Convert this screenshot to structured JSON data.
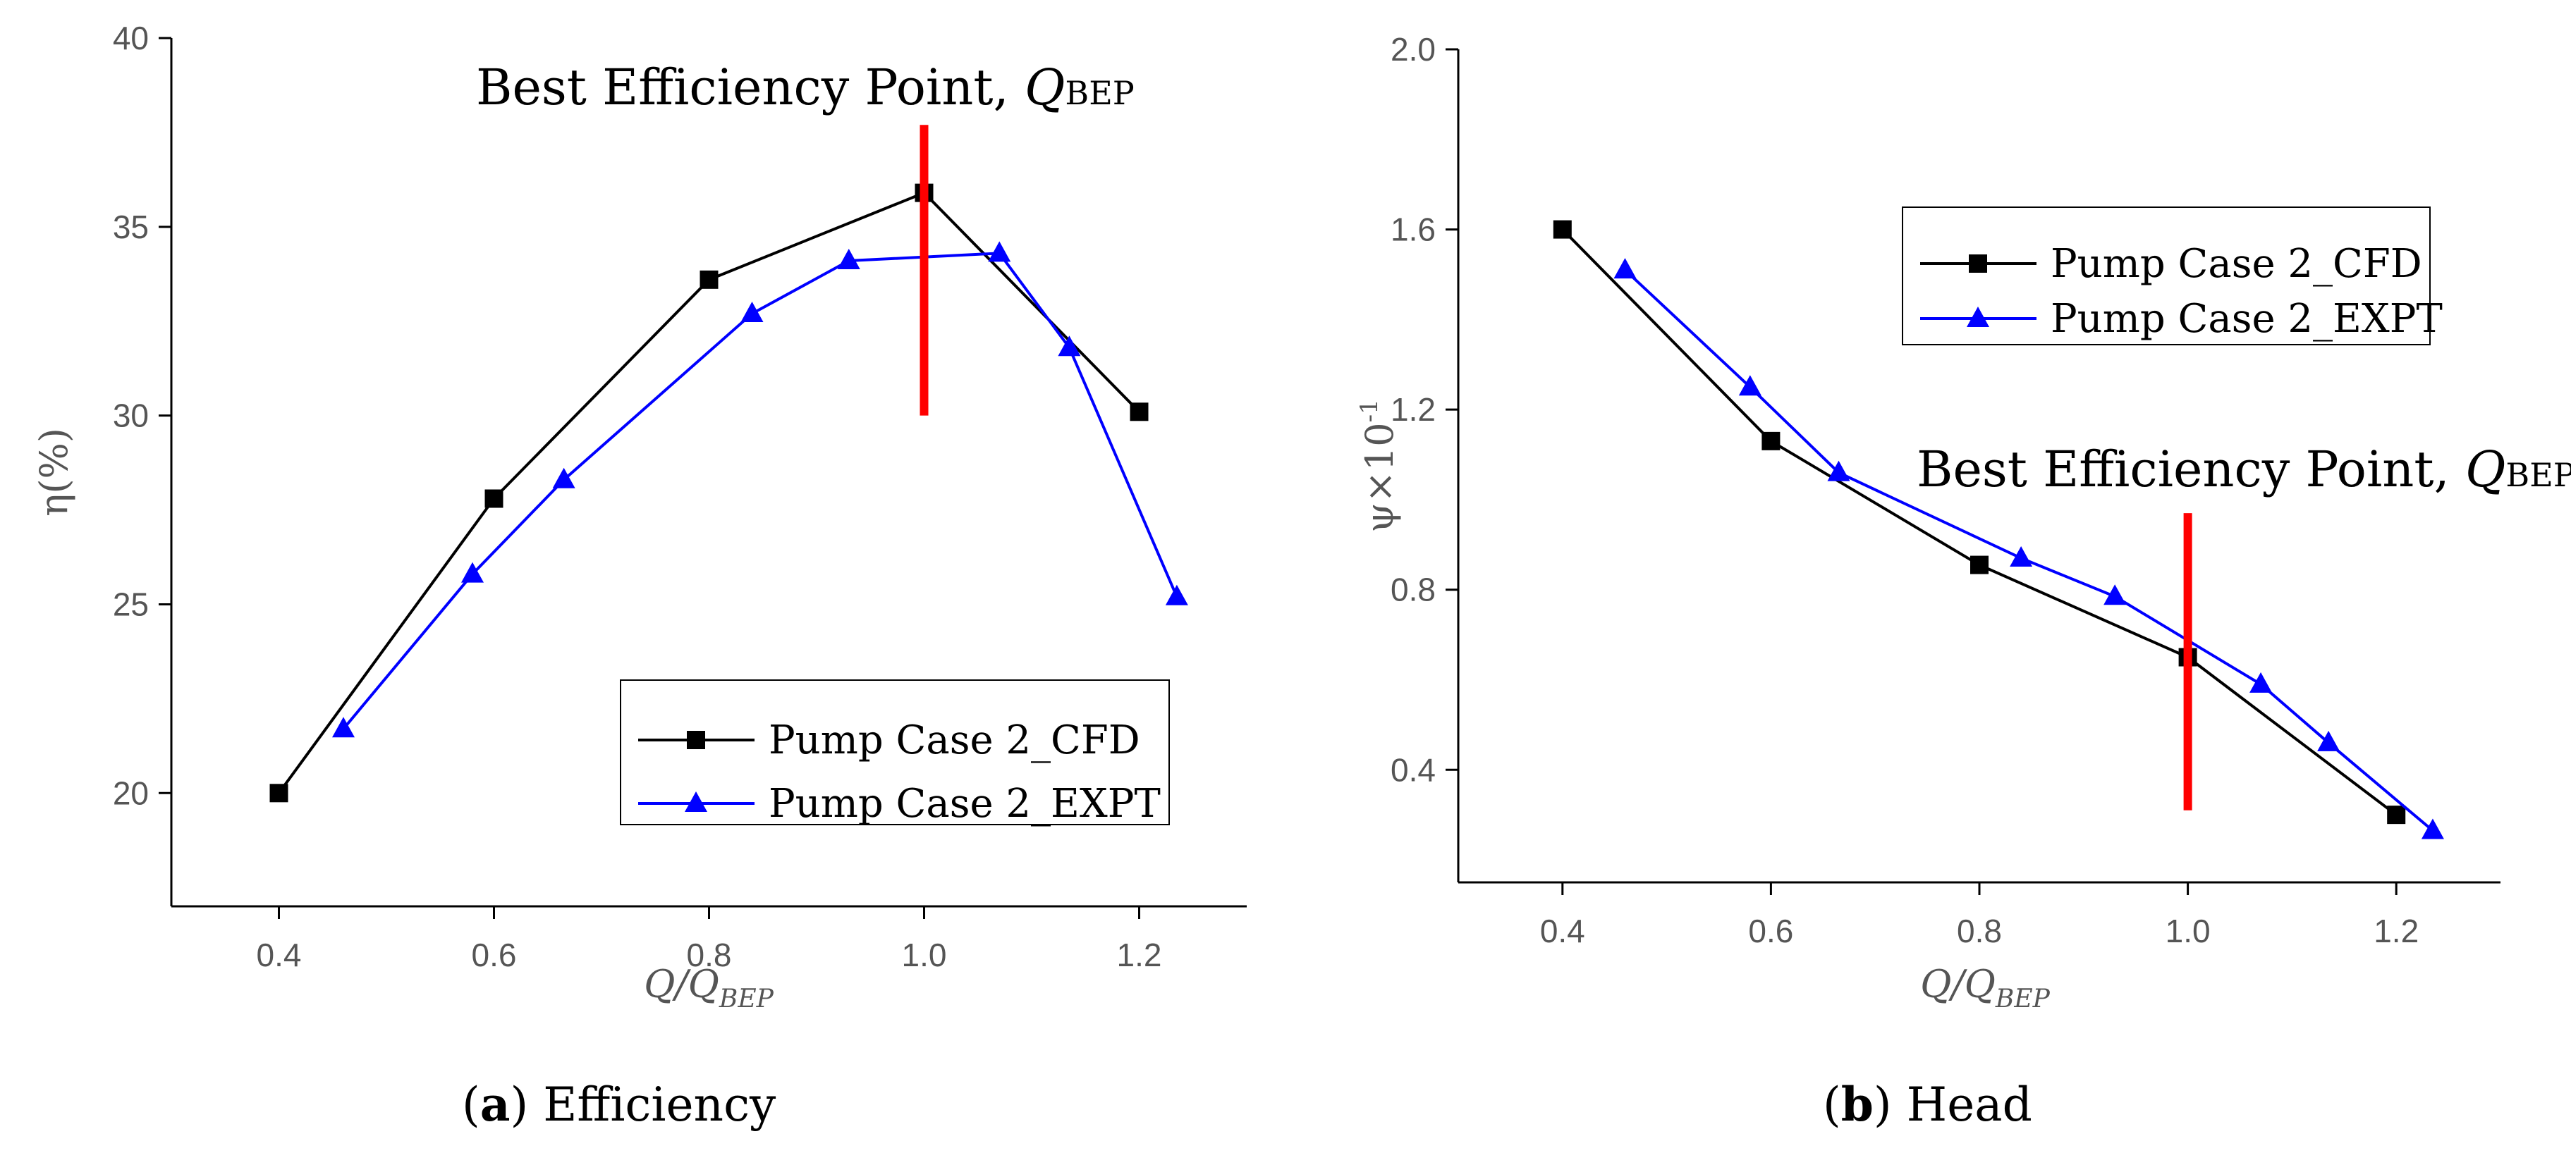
{
  "chart_data": [
    {
      "type": "line",
      "panel": "a",
      "caption_letter": "a",
      "caption_text": "Efficiency",
      "xlabel": {
        "main": "Q/Q",
        "sub": "BEP"
      },
      "ylabel": "η(%)",
      "xlim": [
        0.3,
        1.3
      ],
      "ylim": [
        17,
        40
      ],
      "xticks": [
        0.4,
        0.6,
        0.8,
        1.0,
        1.2
      ],
      "xtick_labels": [
        "0.4",
        "0.6",
        "0.8",
        "1.0",
        "1.2"
      ],
      "yticks": [
        20,
        25,
        30,
        35,
        40
      ],
      "ytick_labels": [
        "20",
        "25",
        "30",
        "35",
        "40"
      ],
      "annotation": {
        "text": "Best Efficiency Point, ",
        "italic": "Q",
        "sub": "BEP"
      },
      "bep_line": {
        "x": 1.0,
        "y_from": 30.0,
        "y_to": 37.7,
        "color": "#ff0000"
      },
      "legend_position": "lower-right",
      "series": [
        {
          "name": "Pump Case 2_CFD",
          "color": "#000000",
          "marker": "square",
          "x": [
            0.4,
            0.6,
            0.8,
            1.0,
            1.2
          ],
          "y": [
            20.0,
            27.8,
            33.6,
            35.9,
            30.1
          ]
        },
        {
          "name": "Pump Case 2_EXPT",
          "color": "#0000ff",
          "marker": "triangle",
          "x": [
            0.46,
            0.58,
            0.665,
            0.84,
            0.93,
            1.07,
            1.135,
            1.235
          ],
          "y": [
            21.7,
            25.8,
            28.3,
            32.7,
            34.1,
            34.3,
            31.8,
            25.2
          ]
        }
      ]
    },
    {
      "type": "line",
      "panel": "b",
      "caption_letter": "b",
      "caption_text": "Head",
      "xlabel": {
        "main": "Q/Q",
        "sub": "BEP"
      },
      "ylabel": "ψ×10",
      "ylabel_sup": "-1",
      "xlim": [
        0.3,
        1.3
      ],
      "ylim": [
        0.15,
        2.0
      ],
      "xticks": [
        0.4,
        0.6,
        0.8,
        1.0,
        1.2
      ],
      "xtick_labels": [
        "0.4",
        "0.6",
        "0.8",
        "1.0",
        "1.2"
      ],
      "yticks": [
        0.4,
        0.8,
        1.2,
        1.6,
        2.0
      ],
      "ytick_labels": [
        "0.4",
        "0.8",
        "1.2",
        "1.6",
        "2.0"
      ],
      "annotation": {
        "text": "Best Efficiency Point, ",
        "italic": "Q",
        "sub": "BEP"
      },
      "bep_line": {
        "x": 1.0,
        "y_from": 0.31,
        "y_to": 0.97,
        "color": "#ff0000"
      },
      "legend_position": "upper-right",
      "series": [
        {
          "name": "Pump Case 2_CFD",
          "color": "#000000",
          "marker": "square",
          "x": [
            0.4,
            0.6,
            0.8,
            1.0,
            1.2
          ],
          "y": [
            1.6,
            1.13,
            0.855,
            0.65,
            0.3
          ]
        },
        {
          "name": "Pump Case 2_EXPT",
          "color": "#0000ff",
          "marker": "triangle",
          "x": [
            0.46,
            0.58,
            0.665,
            0.84,
            0.93,
            1.07,
            1.135,
            1.235
          ],
          "y": [
            1.51,
            1.25,
            1.06,
            0.87,
            0.785,
            0.59,
            0.46,
            0.265
          ]
        }
      ]
    }
  ]
}
